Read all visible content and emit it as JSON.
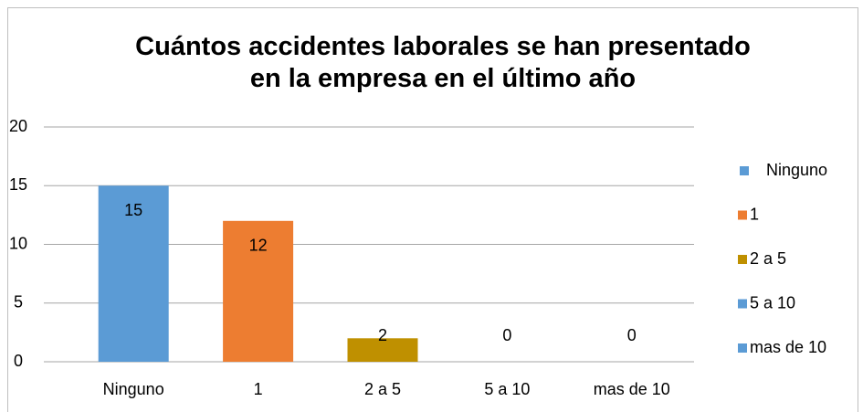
{
  "chart_data": {
    "type": "bar",
    "title": "Cuántos accidentes laborales se han presentado\nen la empresa en el último año",
    "categories": [
      "Ninguno",
      "1",
      "2 a 5",
      "5 a 10",
      "mas de 10"
    ],
    "values": [
      15,
      12,
      2,
      0,
      0
    ],
    "colors": [
      "#5b9bd5",
      "#ed7d31",
      "#bf9000",
      "#5b9bd5",
      "#5b9bd5"
    ],
    "ylim": [
      0,
      20
    ],
    "yticks": [
      0,
      5,
      10,
      15,
      20
    ],
    "grid": true,
    "legend": "right"
  }
}
